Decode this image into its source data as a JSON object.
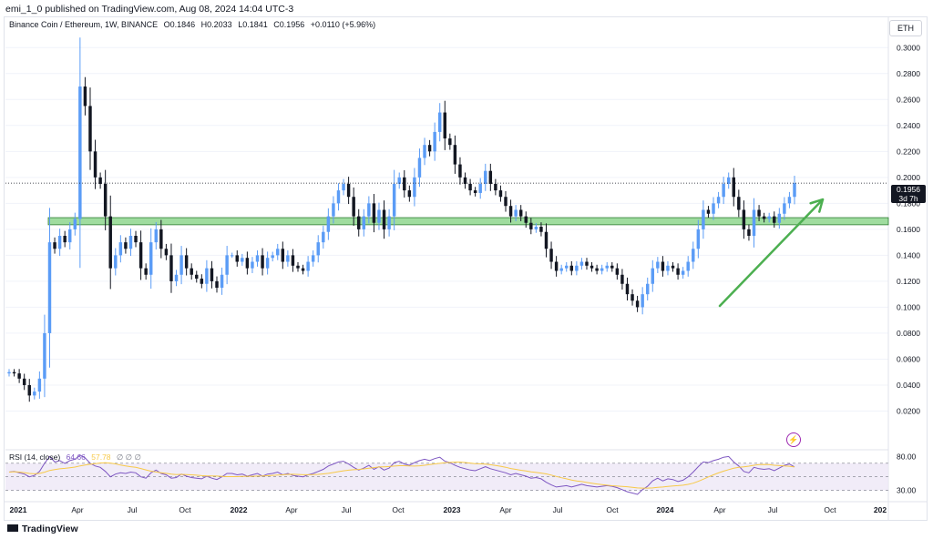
{
  "header": {
    "published_text": "emi_1_0 published on TradingView.com, Aug 08, 2024 14:04 UTC-3"
  },
  "legend": {
    "symbol": "Binance Coin / Ethereum, 1W, BINANCE",
    "open": "O0.1846",
    "high": "H0.2033",
    "low": "L0.1841",
    "close": "C0.1956",
    "change": "+0.0110 (+5.96%)"
  },
  "currency_button": "ETH",
  "price_tag": {
    "price": "0.1956",
    "countdown": "3d 7h"
  },
  "footer": {
    "brand": "TradingView"
  },
  "rsi": {
    "label": "RSI (14, close)",
    "value": "64.66",
    "ma_value": "57.78",
    "na_marks": "∅ ∅ ∅",
    "axis_ticks": [
      "80.00",
      "30.00"
    ]
  },
  "colors": {
    "up": "#5b9cf6",
    "down": "#131722",
    "support_zone": "#7fd07f",
    "arrow": "#4caf50",
    "rsi_line": "#7e57c2",
    "rsi_ma": "#f7c948",
    "rsi_band": "#ede7f6"
  },
  "chart_data": {
    "type": "candlestick",
    "ylim": [
      0.0,
      0.31
    ],
    "y_ticks": [
      "0.3000",
      "0.2800",
      "0.2600",
      "0.2400",
      "0.2200",
      "0.2000",
      "0.1800",
      "0.1600",
      "0.1400",
      "0.1200",
      "0.1000",
      "0.0800",
      "0.0600",
      "0.0400",
      "0.0200"
    ],
    "x_ticks": [
      "2021",
      "Apr",
      "Jul",
      "Oct",
      "2022",
      "Apr",
      "Jul",
      "Oct",
      "2023",
      "Apr",
      "Jul",
      "Oct",
      "2024",
      "Apr",
      "Jul",
      "Oct",
      "202"
    ],
    "current_price": 0.1956,
    "support_zone": [
      0.1635,
      0.169
    ],
    "arrow": {
      "from": [
        0.101,
        "2024-03-25"
      ],
      "to": [
        0.183,
        "2024-09-30"
      ]
    },
    "weekly_close": [
      0.05,
      0.049,
      0.045,
      0.04,
      0.032,
      0.035,
      0.045,
      0.08,
      0.15,
      0.145,
      0.155,
      0.15,
      0.16,
      0.168,
      0.27,
      0.255,
      0.22,
      0.2,
      0.195,
      0.17,
      0.13,
      0.14,
      0.15,
      0.145,
      0.155,
      0.15,
      0.13,
      0.125,
      0.15,
      0.16,
      0.145,
      0.14,
      0.12,
      0.125,
      0.14,
      0.13,
      0.125,
      0.122,
      0.118,
      0.13,
      0.12,
      0.115,
      0.125,
      0.14,
      0.14,
      0.135,
      0.138,
      0.13,
      0.135,
      0.14,
      0.13,
      0.138,
      0.14,
      0.145,
      0.135,
      0.14,
      0.132,
      0.13,
      0.128,
      0.135,
      0.14,
      0.15,
      0.158,
      0.17,
      0.18,
      0.19,
      0.195,
      0.185,
      0.17,
      0.16,
      0.17,
      0.18,
      0.165,
      0.175,
      0.16,
      0.17,
      0.195,
      0.2,
      0.19,
      0.185,
      0.2,
      0.215,
      0.225,
      0.22,
      0.235,
      0.25,
      0.23,
      0.225,
      0.21,
      0.2,
      0.195,
      0.19,
      0.188,
      0.195,
      0.205,
      0.195,
      0.19,
      0.185,
      0.178,
      0.17,
      0.175,
      0.17,
      0.165,
      0.16,
      0.162,
      0.158,
      0.145,
      0.135,
      0.128,
      0.13,
      0.132,
      0.128,
      0.132,
      0.135,
      0.132,
      0.13,
      0.128,
      0.13,
      0.132,
      0.13,
      0.125,
      0.118,
      0.11,
      0.105,
      0.1,
      0.11,
      0.118,
      0.13,
      0.135,
      0.128,
      0.132,
      0.13,
      0.125,
      0.128,
      0.135,
      0.145,
      0.16,
      0.175,
      0.172,
      0.18,
      0.185,
      0.195,
      0.2,
      0.185,
      0.175,
      0.16,
      0.155,
      0.175,
      0.17,
      0.168,
      0.17,
      0.165,
      0.172,
      0.18,
      0.185,
      0.1956
    ],
    "rsi": [
      57,
      58,
      56,
      54,
      50,
      52,
      58,
      70,
      80,
      72,
      74,
      70,
      74,
      76,
      82,
      78,
      70,
      66,
      64,
      58,
      50,
      54,
      56,
      55,
      57,
      56,
      50,
      48,
      56,
      60,
      55,
      53,
      48,
      49,
      54,
      51,
      49,
      48,
      47,
      51,
      48,
      46,
      50,
      55,
      55,
      53,
      54,
      51,
      53,
      55,
      51,
      54,
      55,
      57,
      53,
      55,
      52,
      51,
      50,
      53,
      55,
      58,
      61,
      66,
      69,
      72,
      73,
      69,
      64,
      60,
      63,
      67,
      61,
      65,
      60,
      63,
      71,
      73,
      69,
      67,
      71,
      74,
      76,
      74,
      77,
      79,
      73,
      71,
      67,
      64,
      62,
      60,
      59,
      62,
      65,
      62,
      60,
      58,
      56,
      53,
      55,
      53,
      51,
      48,
      49,
      47,
      42,
      38,
      35,
      36,
      37,
      35,
      37,
      39,
      37,
      36,
      35,
      36,
      37,
      36,
      34,
      31,
      28,
      26,
      24,
      31,
      36,
      44,
      48,
      44,
      47,
      46,
      43,
      45,
      50,
      57,
      65,
      72,
      71,
      74,
      76,
      79,
      80,
      72,
      66,
      58,
      56,
      64,
      62,
      61,
      62,
      59,
      63,
      67,
      69,
      64.66
    ]
  }
}
